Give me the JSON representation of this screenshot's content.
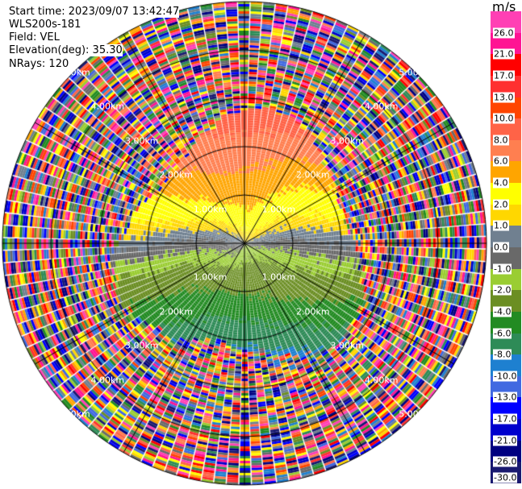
{
  "info": {
    "start_time": "Start time: 2023/09/07 13:42:47",
    "instrument": "WLS200s-181",
    "field": "Field: VEL",
    "elevation": "Elevation(deg): 35.30",
    "nrays": "NRays: 120"
  },
  "chart_data": {
    "type": "heatmap",
    "projection": "polar PPI",
    "field": "VEL",
    "elevation_deg": 35.3,
    "n_rays": 120,
    "max_range_km": 5,
    "range_rings_km": [
      1,
      2,
      3,
      4,
      5
    ],
    "range_ring_labels": [
      "1.00km",
      "2.00km",
      "3.00km",
      "4.00km",
      "5.00km"
    ],
    "spoke_interval_deg": 30,
    "description_of_field": "coherent wind within ~2.5 km: positive (toward north, orange/coral) to negative (south, greens); noisy random values beyond",
    "colorbar": {
      "unit": "m/s",
      "labels": [
        "26.0",
        "21.0",
        "17.0",
        "13.0",
        "10.0",
        "8.0",
        "6.0",
        "4.0",
        "2.0",
        "1.0",
        "0.0",
        "-1.0",
        "-2.0",
        "-4.0",
        "-6.0",
        "-8.0",
        "-10.0",
        "-13.0",
        "-17.0",
        "-21.0",
        "-26.0",
        "-30.0"
      ],
      "colors": [
        "#ff40b4",
        "#ff1493",
        "#ff0000",
        "#ff3030",
        "#ff4500",
        "#ff6347",
        "#ff7f50",
        "#ffa500",
        "#ffff00",
        "#ffd700",
        "#708090",
        "#696969",
        "#9acd32",
        "#6b8e23",
        "#228b22",
        "#2e8b57",
        "#1e80d0",
        "#4169e1",
        "#0000ff",
        "#0000cd",
        "#000080",
        "#191970"
      ]
    }
  }
}
